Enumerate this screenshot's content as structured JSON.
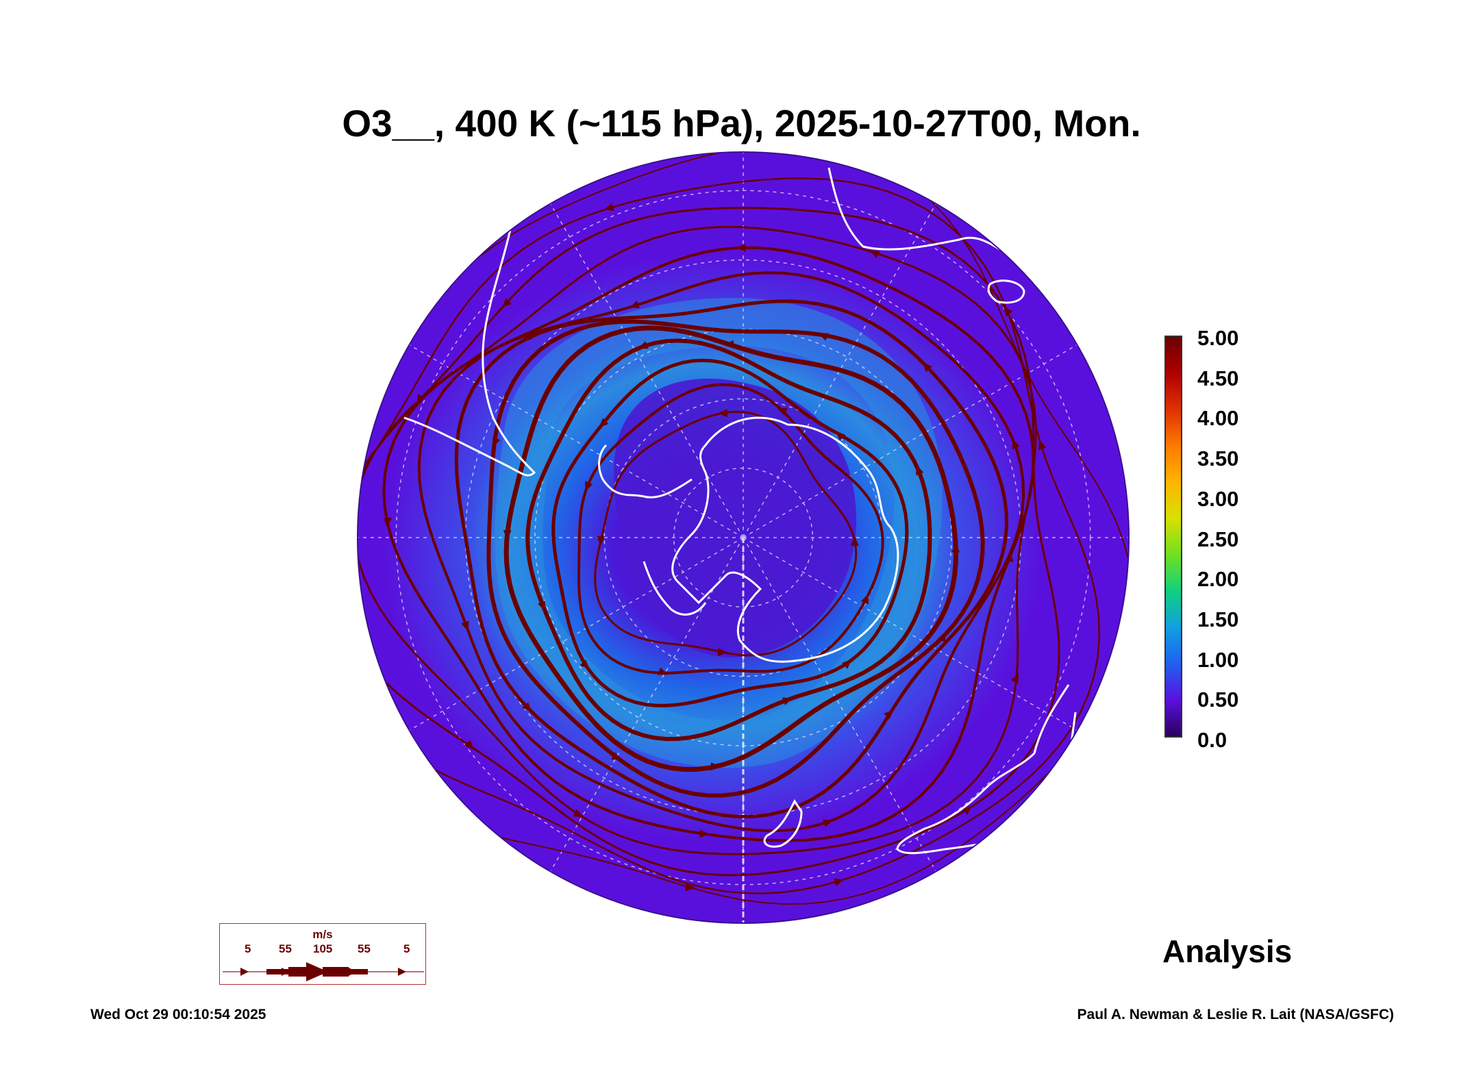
{
  "title": "O3__, 400 K (~115 hPa), 2025-10-27T00, Mon.",
  "colorbar": {
    "labels": [
      "5.00",
      "4.50",
      "4.00",
      "3.50",
      "3.00",
      "2.50",
      "2.00",
      "1.50",
      "1.00",
      "0.50",
      "0.0"
    ],
    "colors": [
      "#6b0000",
      "#b00000",
      "#e03000",
      "#ff7a00",
      "#ffb400",
      "#d8e000",
      "#70e020",
      "#10d080",
      "#10a0e0",
      "#2060f0",
      "#5a10e0",
      "#2a0060"
    ]
  },
  "map": {
    "colors": {
      "background": "#5a10dc",
      "band": "#1e6ae8",
      "band_light": "#2a90e0",
      "streamline": "#6b0000",
      "coast": "#ffffff"
    }
  },
  "legend": {
    "unit": "m/s",
    "values": [
      "5",
      "55",
      "105",
      "55",
      "5"
    ]
  },
  "analysis_label": "Analysis",
  "footer": {
    "timestamp": "Wed Oct 29 00:10:54 2025",
    "credit": "Paul A. Newman & Leslie R. Lait (NASA/GSFC)"
  }
}
